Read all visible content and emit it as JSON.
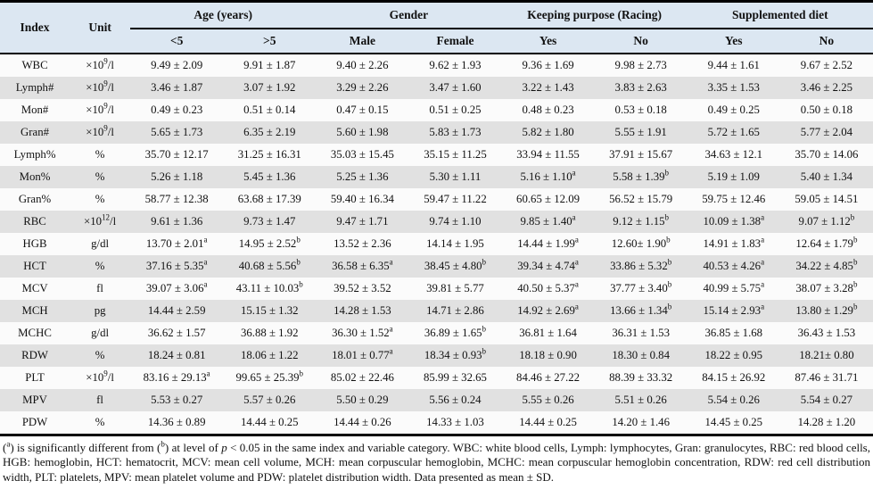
{
  "colors": {
    "header_bg": "#dce7f2",
    "row_base": "#fbfbfb",
    "row_alt": "#e1e1e1",
    "border": "#000000",
    "text": "#111111"
  },
  "table": {
    "index_header": "Index",
    "unit_header": "Unit",
    "col_groups": [
      {
        "label": "Age (years)",
        "sub": [
          "<5",
          ">5"
        ]
      },
      {
        "label": "Gender",
        "sub": [
          "Male",
          "Female"
        ]
      },
      {
        "label": "Keeping purpose (Racing)",
        "sub": [
          "Yes",
          "No"
        ]
      },
      {
        "label": "Supplemented diet",
        "sub": [
          "Yes",
          "No"
        ]
      }
    ],
    "rows": [
      {
        "index": "WBC",
        "unit": "×10^9^/l",
        "values": [
          "9.49 ± 2.09",
          "9.91 ± 1.87",
          "9.40 ± 2.26",
          "9.62 ± 1.93",
          "9.36 ± 1.69",
          "9.98 ± 2.73",
          "9.44 ± 1.61",
          "9.67 ± 2.52"
        ]
      },
      {
        "index": "Lymph#",
        "unit": "×10^9^/l",
        "values": [
          "3.46 ± 1.87",
          "3.07 ± 1.92",
          "3.29 ± 2.26",
          "3.47 ± 1.60",
          "3.22 ± 1.43",
          "3.83 ± 2.63",
          "3.35 ± 1.53",
          "3.46 ± 2.25"
        ]
      },
      {
        "index": "Mon#",
        "unit": "×10^9^/l",
        "values": [
          "0.49 ± 0.23",
          "0.51 ± 0.14",
          "0.47 ± 0.15",
          "0.51 ± 0.25",
          "0.48 ± 0.23",
          "0.53 ± 0.18",
          "0.49 ± 0.25",
          "0.50 ± 0.18"
        ]
      },
      {
        "index": "Gran#",
        "unit": "×10^9^/l",
        "values": [
          "5.65 ± 1.73",
          "6.35 ± 2.19",
          "5.60 ± 1.98",
          "5.83 ± 1.73",
          "5.82 ± 1.80",
          "5.55 ± 1.91",
          "5.72 ± 1.65",
          "5.77 ± 2.04"
        ]
      },
      {
        "index": "Lymph%",
        "unit": "%",
        "values": [
          "35.70 ± 12.17",
          "31.25 ± 16.31",
          "35.03 ± 15.45",
          "35.15 ± 11.25",
          "33.94 ± 11.55",
          "37.91 ± 15.67",
          "34.63 ± 12.1",
          "35.70 ± 14.06"
        ]
      },
      {
        "index": "Mon%",
        "unit": "%",
        "values": [
          "5.26 ± 1.18",
          "5.45 ± 1.36",
          "5.25 ± 1.36",
          "5.30 ± 1.11",
          "5.16 ± 1.10^a^",
          "5.58 ± 1.39^b^",
          "5.19 ± 1.09",
          "5.40 ± 1.34"
        ]
      },
      {
        "index": "Gran%",
        "unit": "%",
        "values": [
          "58.77 ± 12.38",
          "63.68 ± 17.39",
          "59.40 ± 16.34",
          "59.47 ± 11.22",
          "60.65 ± 12.09",
          "56.52 ± 15.79",
          "59.75 ± 12.46",
          "59.05 ± 14.51"
        ]
      },
      {
        "index": "RBC",
        "unit": "×10^12^/l",
        "values": [
          "9.61 ± 1.36",
          "9.73 ± 1.47",
          "9.47 ± 1.71",
          "9.74 ± 1.10",
          "9.85 ± 1.40^a^",
          "9.12 ± 1.15^b^",
          "10.09 ± 1.38^a^",
          "9.07 ± 1.12^b^"
        ]
      },
      {
        "index": "HGB",
        "unit": "g/dl",
        "values": [
          "13.70 ± 2.01^a^",
          "14.95 ± 2.52^b^",
          "13.52 ± 2.36",
          "14.14 ± 1.95",
          "14.44 ± 1.99^a^",
          "12.60± 1.90^b^",
          "14.91 ± 1.83^a^",
          "12.64 ± 1.79^b^"
        ]
      },
      {
        "index": "HCT",
        "unit": "%",
        "values": [
          "37.16 ± 5.35^a^",
          "40.68 ± 5.56^b^",
          "36.58 ± 6.35^a^",
          "38.45 ± 4.80^b^",
          "39.34 ± 4.74^a^",
          "33.86 ± 5.32^b^",
          "40.53 ± 4.26^a^",
          "34.22 ± 4.85^b^"
        ]
      },
      {
        "index": "MCV",
        "unit": "fl",
        "values": [
          "39.07 ± 3.06^a^",
          "43.11 ± 10.03^b^",
          "39.52 ± 3.52",
          "39.81 ± 5.77",
          "40.50 ± 5.37^a^",
          "37.77 ± 3.40^b^",
          "40.99 ± 5.75^a^",
          "38.07 ± 3.28^b^"
        ]
      },
      {
        "index": "MCH",
        "unit": "pg",
        "values": [
          "14.44 ± 2.59",
          "15.15 ± 1.32",
          "14.28 ± 1.53",
          "14.71 ± 2.86",
          "14.92 ± 2.69^a^",
          "13.66 ± 1.34^b^",
          "15.14 ± 2.93^a^",
          "13.80 ± 1.29^b^"
        ]
      },
      {
        "index": "MCHC",
        "unit": "g/dl",
        "values": [
          "36.62 ± 1.57",
          "36.88 ± 1.92",
          "36.30 ± 1.52^a^",
          "36.89 ± 1.65^b^",
          "36.81 ± 1.64",
          "36.31 ± 1.53",
          "36.85 ± 1.68",
          "36.43 ± 1.53"
        ]
      },
      {
        "index": "RDW",
        "unit": "%",
        "values": [
          "18.24 ± 0.81",
          "18.06 ± 1.22",
          "18.01 ± 0.77^a^",
          "18.34 ± 0.93^b^",
          "18.18 ± 0.90",
          "18.30 ± 0.84",
          "18.22 ± 0.95",
          "18.21± 0.80"
        ]
      },
      {
        "index": "PLT",
        "unit": "×10^9^/l",
        "values": [
          "83.16 ± 29.13^a^",
          "99.65 ± 25.39^b^",
          "85.02 ± 22.46",
          "85.99 ± 32.65",
          "84.46 ± 27.22",
          "88.39 ± 33.32",
          "84.15 ± 26.92",
          "87.46 ± 31.71"
        ]
      },
      {
        "index": "MPV",
        "unit": "fl",
        "values": [
          "5.53 ± 0.27",
          "5.57 ± 0.26",
          "5.50 ± 0.29",
          "5.56 ± 0.24",
          "5.55 ± 0.26",
          "5.51 ± 0.26",
          "5.54 ± 0.26",
          "5.54 ± 0.27"
        ]
      },
      {
        "index": "PDW",
        "unit": "%",
        "values": [
          "14.36 ± 0.89",
          "14.44 ± 0.25",
          "14.44 ± 0.26",
          "14.33 ± 1.03",
          "14.44 ± 0.25",
          "14.20 ± 1.46",
          "14.45 ± 0.25",
          "14.28 ± 1.20"
        ]
      }
    ]
  },
  "footnote": {
    "seg_open": "(",
    "sup_a": "a",
    "seg1": ") is significantly different from (",
    "sup_b": "b",
    "seg2": ") at level of ",
    "p_symbol": "p",
    "seg3": " < 0.05 in the same index and variable category. WBC: white blood cells, Lymph: lymphocytes, Gran: granulocytes, RBC: red blood cells, HGB: hemoglobin, HCT: hematocrit, MCV: mean cell volume, MCH: mean corpuscular hemoglobin, MCHC: mean corpuscular hemoglobin concentration, RDW: red cell distribution width, PLT: platelets, MPV: mean platelet volume and PDW: platelet distribution width. Data presented as mean ± SD."
  }
}
